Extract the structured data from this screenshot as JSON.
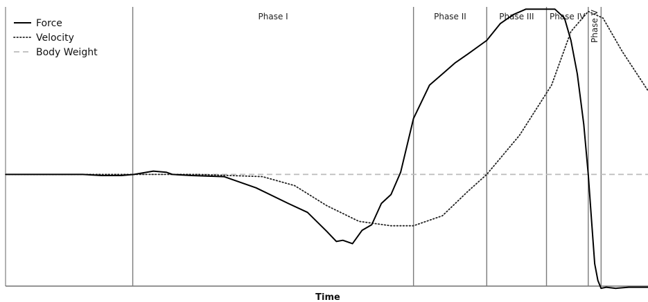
{
  "chart_data": {
    "type": "line",
    "xlabel": "Time",
    "ylabel": "",
    "xlim": [
      0,
      1000
    ],
    "ylim": [
      -100,
      150
    ],
    "grid": false,
    "legend_position": "top-left",
    "phase_boundaries": [
      198,
      635,
      749,
      842,
      907,
      927
    ],
    "phases": [
      {
        "label": "Phase I",
        "start": 198,
        "end": 635
      },
      {
        "label": "Phase II",
        "start": 635,
        "end": 749
      },
      {
        "label": "Phase III",
        "start": 749,
        "end": 842
      },
      {
        "label": "Phase IV",
        "start": 842,
        "end": 907
      },
      {
        "label": "Phase V",
        "start": 907,
        "end": 927
      }
    ],
    "series": [
      {
        "name": "Force",
        "style": "solid",
        "color": "#000000",
        "x": [
          0,
          60,
          120,
          150,
          180,
          200,
          230,
          250,
          260,
          290,
          340,
          390,
          440,
          470,
          500,
          515,
          525,
          540,
          555,
          570,
          585,
          600,
          615,
          635,
          660,
          680,
          700,
          720,
          749,
          770,
          790,
          810,
          825,
          842,
          855,
          870,
          880,
          890,
          900,
          907,
          912,
          917,
          922,
          927,
          935,
          950,
          970,
          1000
        ],
        "y": [
          0,
          0,
          0,
          -1,
          -1,
          0,
          3,
          2,
          0,
          -1,
          -2,
          -12,
          -26,
          -34,
          -51,
          -60,
          -59,
          -62,
          -50,
          -45,
          -26,
          -18,
          2,
          50,
          80,
          90,
          100,
          108,
          120,
          135,
          143,
          148,
          148,
          148,
          148,
          140,
          120,
          90,
          45,
          0,
          -40,
          -80,
          -95,
          -102,
          -101,
          -102,
          -101,
          -101
        ]
      },
      {
        "name": "Velocity",
        "style": "dotted",
        "color": "#222222",
        "x": [
          0,
          100,
          198,
          300,
          400,
          450,
          500,
          550,
          600,
          635,
          680,
          720,
          749,
          800,
          850,
          880,
          907,
          930,
          960,
          1000
        ],
        "y": [
          0,
          0,
          0,
          0,
          -2,
          -10,
          -28,
          -42,
          -46,
          -46,
          -37,
          -15,
          0,
          35,
          80,
          128,
          146,
          140,
          110,
          75
        ]
      },
      {
        "name": "Body Weight",
        "style": "dashed",
        "color": "#bbbbbb",
        "x": [
          0,
          1000
        ],
        "y": [
          0,
          0
        ]
      }
    ]
  }
}
